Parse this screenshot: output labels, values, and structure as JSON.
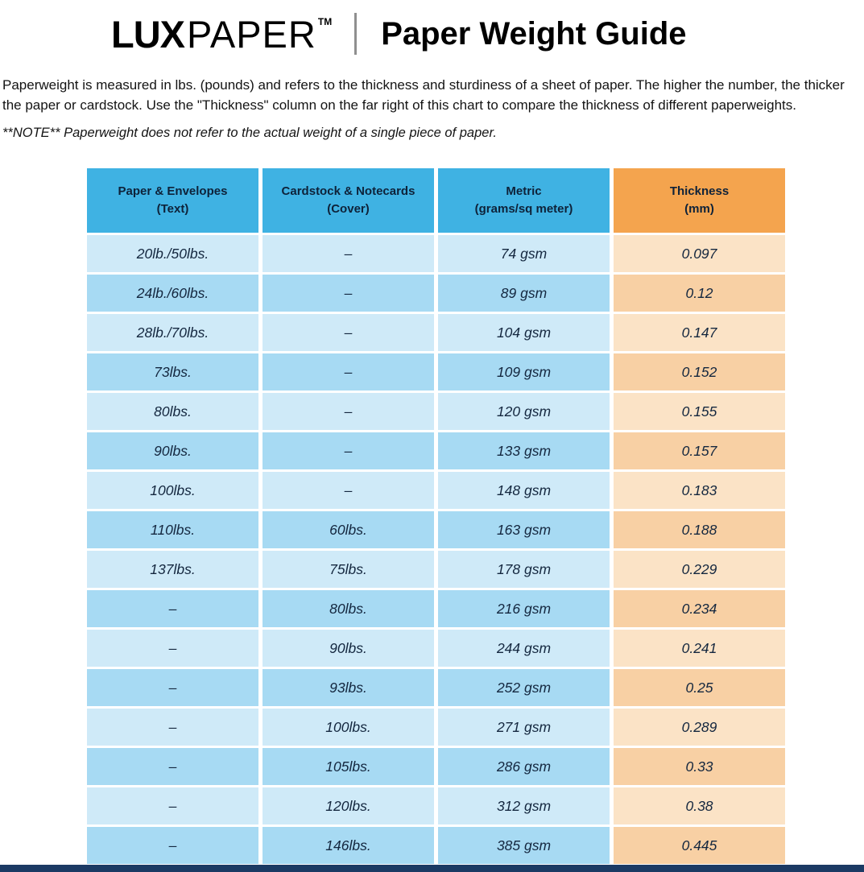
{
  "header": {
    "logo": {
      "lux": "LUX",
      "paper": "PAPER",
      "tm": "TM"
    },
    "title": "Paper Weight Guide"
  },
  "intro": {
    "paragraph": "Paperweight is measured in lbs. (pounds) and refers to the thickness and sturdiness of a sheet of paper. The higher the number, the thicker the paper or cardstock. Use the \"Thickness\" column on the far right of this chart to compare the thickness of different paperweights.",
    "note": "**NOTE** Paperweight does not refer to the actual weight of a single piece of paper."
  },
  "table": {
    "headers": [
      {
        "line1": "Paper & Envelopes",
        "line2": "(Text)",
        "type": "blue"
      },
      {
        "line1": "Cardstock & Notecards",
        "line2": "(Cover)",
        "type": "blue"
      },
      {
        "line1": "Metric",
        "line2": "(grams/sq meter)",
        "type": "blue"
      },
      {
        "line1": "Thickness",
        "line2": "(mm)",
        "type": "orange"
      }
    ],
    "rows": [
      [
        "20lb./50lbs.",
        "–",
        "74 gsm",
        "0.097"
      ],
      [
        "24lb./60lbs.",
        "–",
        "89 gsm",
        "0.12"
      ],
      [
        "28lb./70lbs.",
        "–",
        "104 gsm",
        "0.147"
      ],
      [
        "73lbs.",
        "–",
        "109 gsm",
        "0.152"
      ],
      [
        "80lbs.",
        "–",
        "120 gsm",
        "0.155"
      ],
      [
        "90lbs.",
        "–",
        "133 gsm",
        "0.157"
      ],
      [
        "100lbs.",
        "–",
        "148 gsm",
        "0.183"
      ],
      [
        "110lbs.",
        "60lbs.",
        "163 gsm",
        "0.188"
      ],
      [
        "137lbs.",
        "75lbs.",
        "178 gsm",
        "0.229"
      ],
      [
        "–",
        "80lbs.",
        "216 gsm",
        "0.234"
      ],
      [
        "–",
        "90lbs.",
        "244 gsm",
        "0.241"
      ],
      [
        "–",
        "93lbs.",
        "252 gsm",
        "0.25"
      ],
      [
        "–",
        "100lbs.",
        "271 gsm",
        "0.289"
      ],
      [
        "–",
        "105lbs.",
        "286 gsm",
        "0.33"
      ],
      [
        "–",
        "120lbs.",
        "312 gsm",
        "0.38"
      ],
      [
        "–",
        "146lbs.",
        "385 gsm",
        "0.445"
      ]
    ]
  },
  "chart_data": {
    "type": "table",
    "title": "Paper Weight Guide",
    "columns": [
      "Paper & Envelopes (Text)",
      "Cardstock & Notecards (Cover)",
      "Metric (grams/sq meter)",
      "Thickness (mm)"
    ],
    "rows": [
      [
        "20lb./50lbs.",
        "–",
        "74 gsm",
        "0.097"
      ],
      [
        "24lb./60lbs.",
        "–",
        "89 gsm",
        "0.12"
      ],
      [
        "28lb./70lbs.",
        "–",
        "104 gsm",
        "0.147"
      ],
      [
        "73lbs.",
        "–",
        "109 gsm",
        "0.152"
      ],
      [
        "80lbs.",
        "–",
        "120 gsm",
        "0.155"
      ],
      [
        "90lbs.",
        "–",
        "133 gsm",
        "0.157"
      ],
      [
        "100lbs.",
        "–",
        "148 gsm",
        "0.183"
      ],
      [
        "110lbs.",
        "60lbs.",
        "163 gsm",
        "0.188"
      ],
      [
        "137lbs.",
        "75lbs.",
        "178 gsm",
        "0.229"
      ],
      [
        "–",
        "80lbs.",
        "216 gsm",
        "0.234"
      ],
      [
        "–",
        "90lbs.",
        "244 gsm",
        "0.241"
      ],
      [
        "–",
        "93lbs.",
        "252 gsm",
        "0.25"
      ],
      [
        "–",
        "100lbs.",
        "271 gsm",
        "0.289"
      ],
      [
        "–",
        "105lbs.",
        "286 gsm",
        "0.33"
      ],
      [
        "–",
        "120lbs.",
        "312 gsm",
        "0.38"
      ],
      [
        "–",
        "146lbs.",
        "385 gsm",
        "0.445"
      ]
    ]
  },
  "colors": {
    "header_blue": "#3fb2e3",
    "header_orange": "#f4a44e",
    "row_blue_light": "#cfeaf8",
    "row_blue_dark": "#a7daf3",
    "row_orange_light": "#fbe3c6",
    "row_orange_dark": "#f8d0a4",
    "footer_bar": "#1b3a64",
    "cell_text": "#14273f"
  }
}
